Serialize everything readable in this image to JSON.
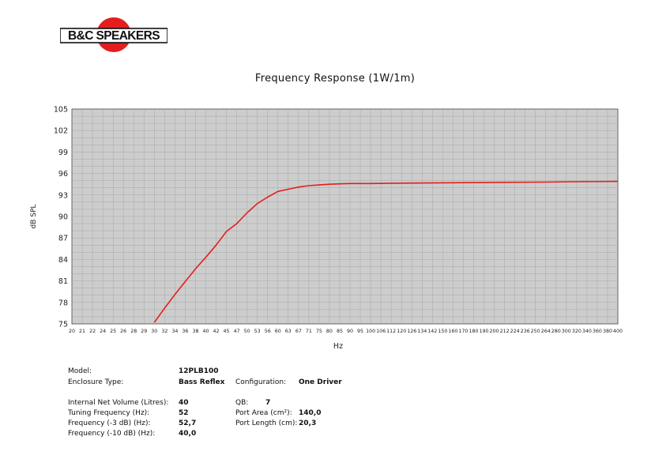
{
  "logo": {
    "text": "B&C SPEAKERS"
  },
  "chart_data": {
    "type": "line",
    "title": "Frequency Response (1W/1m)",
    "xlabel": "Hz",
    "ylabel": "dB SPL",
    "ylim": [
      75,
      105
    ],
    "yticks": [
      75,
      78,
      81,
      84,
      87,
      90,
      93,
      96,
      99,
      102,
      105
    ],
    "xticks": [
      "20",
      "21",
      "22",
      "24",
      "25",
      "26",
      "28",
      "29",
      "30",
      "32",
      "34",
      "36",
      "38",
      "40",
      "42",
      "45",
      "47",
      "50",
      "53",
      "56",
      "60",
      "63",
      "67",
      "71",
      "75",
      "80",
      "85",
      "90",
      "95",
      "100",
      "106",
      "112",
      "120",
      "126",
      "134",
      "142",
      "150",
      "160",
      "170",
      "180",
      "190",
      "200",
      "212",
      "224",
      "236",
      "250",
      "264",
      "280",
      "300",
      "320",
      "340",
      "360",
      "380",
      "400"
    ],
    "grid": true,
    "series": [
      {
        "color": "#e41e1e",
        "x": [
          30,
          32,
          34,
          36,
          38,
          40,
          42,
          45,
          47,
          50,
          53,
          56,
          60,
          63,
          67,
          71,
          75,
          80,
          85,
          90,
          100,
          120,
          150,
          200,
          264,
          320,
          400
        ],
        "y": [
          75.2,
          77.2,
          79.1,
          80.9,
          82.7,
          84.3,
          86.0,
          87.9,
          89.0,
          90.5,
          91.8,
          92.7,
          93.5,
          93.8,
          94.1,
          94.3,
          94.4,
          94.5,
          94.55,
          94.6,
          94.6,
          94.65,
          94.7,
          94.75,
          94.8,
          94.85,
          94.9
        ]
      }
    ]
  },
  "specs": {
    "model_label": "Model:",
    "model_value": "12PLB100",
    "enclosure_label": "Enclosure Type:",
    "enclosure_value": "Bass Reflex",
    "configuration_label": "Configuration:",
    "configuration_value": "One Driver",
    "volume_label": "Internal Net Volume (Litres):",
    "volume_value": "40",
    "qb_label": "QB:",
    "qb_value": "7",
    "tuning_label": "Tuning Frequency (Hz):",
    "tuning_value": "52",
    "port_area_label": "Port Area (cm²):",
    "port_area_value": "140,0",
    "f3_label": "Frequency (-3 dB) (Hz):",
    "f3_value": "52,7",
    "port_length_label": "Port Length (cm):",
    "port_length_value": "20,3",
    "f10_label": "Frequency (-10 dB) (Hz):",
    "f10_value": "40,0"
  }
}
